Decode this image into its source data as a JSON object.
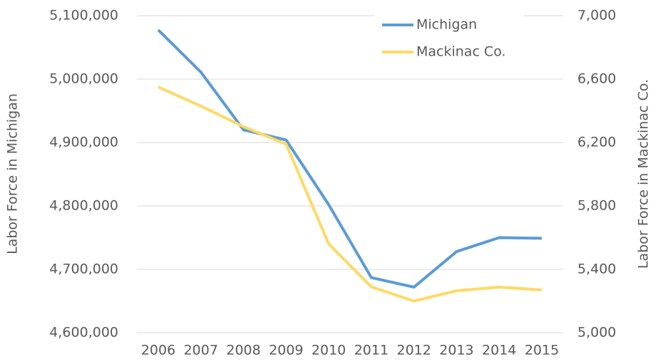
{
  "chart_data": {
    "type": "line",
    "x_label": "Labor Force in Michigan",
    "y2_label": "Labor Force in Mackinac Co.",
    "categories": [
      "2006",
      "2007",
      "2008",
      "2009",
      "2010",
      "2011",
      "2012",
      "2013",
      "2014",
      "2015"
    ],
    "series": [
      {
        "name": "Michigan",
        "color": "#5b9bd5",
        "values": [
          5077500,
          5011000,
          4920000,
          4904000,
          4802000,
          4687000,
          4672000,
          4728000,
          4750000,
          4749000
        ]
      },
      {
        "name": "Mackinac Co.",
        "color": "#ffd966",
        "axis": "y2",
        "values": [
          6550,
          6430,
          6300,
          6190,
          5560,
          5290,
          5200,
          5265,
          5288,
          5270
        ]
      }
    ],
    "ylim": [
      4600000,
      5100000
    ],
    "yticks": [
      {
        "value": 4600000,
        "label": "4,600,000"
      },
      {
        "value": 4700000,
        "label": "4,700,000"
      },
      {
        "value": 4800000,
        "label": "4,800,000"
      },
      {
        "value": 4900000,
        "label": "4,900,000"
      },
      {
        "value": 5000000,
        "label": "5,000,000"
      },
      {
        "value": 5100000,
        "label": "5,100,000"
      }
    ],
    "y2lim": [
      5000,
      7000
    ],
    "y2ticks": [
      {
        "value": 5000,
        "label": "5,000"
      },
      {
        "value": 5400,
        "label": "5,400"
      },
      {
        "value": 5800,
        "label": "5,800"
      },
      {
        "value": 6200,
        "label": "6,200"
      },
      {
        "value": 6600,
        "label": "6,600"
      },
      {
        "value": 7000,
        "label": "7,000"
      }
    ],
    "grid": true,
    "legend": "top-right"
  }
}
